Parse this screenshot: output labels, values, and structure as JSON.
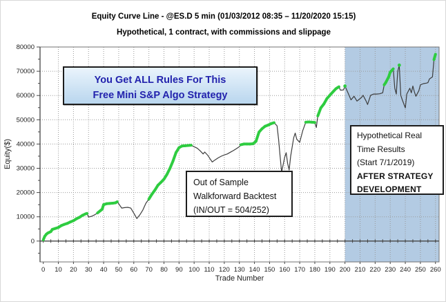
{
  "title": {
    "line1": "Equity Curve Line - @ES.D 5 min (01/03/2012 08:35 – 11/20/2020 15:15)",
    "line2": "Hypothetical, 1 contract, with commissions and slippage"
  },
  "annotations": {
    "promo_box": {
      "line1": "You Get ALL Rules For This",
      "line2": "Free Mini S&P Algo Strategy",
      "text_color": "#2222ad"
    },
    "oos_box": {
      "lines": [
        "Out of Sample",
        "Walkforward Backtest",
        "(IN/OUT = 504/252)"
      ]
    },
    "real_time_box": {
      "lines": [
        "Hypothetical Real",
        "Time Results",
        "(Start 7/1/2019)"
      ],
      "bold_lines": [
        "AFTER  STRATEGY",
        "DEVELOPMENT"
      ]
    }
  },
  "chart_data": {
    "type": "line",
    "title": "Equity Curve Line - @ES.D 5 min (01/03/2012 08:35 – 11/20/2020 15:15)",
    "subtitle": "Hypothetical, 1 contract, with commissions and slippage",
    "xlabel": "Trade Number",
    "ylabel": "Equity($)",
    "xlim": [
      -2.15,
      262.4
    ],
    "ylim": [
      -8600,
      80000
    ],
    "x_ticks": [
      0,
      10,
      20,
      30,
      40,
      50,
      60,
      70,
      80,
      90,
      100,
      110,
      120,
      130,
      140,
      150,
      160,
      170,
      180,
      190,
      200,
      210,
      220,
      230,
      240,
      250,
      260
    ],
    "y_ticks": [
      0,
      10000,
      20000,
      30000,
      40000,
      50000,
      60000,
      70000,
      80000
    ],
    "x_minor_step": 5,
    "y_minor_step": 5000,
    "grid": "dotted, vertical every 10 trades, horizontal every 10000",
    "legend_position": "none",
    "colors": {
      "line": "#3c3c3c",
      "new_equity_high": "#2ecc40",
      "shaded_region": "#b3cbe3",
      "grid": "#999999",
      "axis": "#444444",
      "frame": "#707070"
    },
    "shaded_region": {
      "x_start": 200,
      "x_end": 262.4,
      "meaning": "Hypothetical real time results period (start 7/1/2019)"
    },
    "series": [
      {
        "name": "Equity",
        "points": [
          [
            0,
            500
          ],
          [
            1,
            2000
          ],
          [
            2,
            2800
          ],
          [
            3,
            3300
          ],
          [
            4,
            3600
          ],
          [
            5,
            3900
          ],
          [
            6,
            4800
          ],
          [
            8,
            5200
          ],
          [
            10,
            5600
          ],
          [
            12,
            6400
          ],
          [
            14,
            6900
          ],
          [
            16,
            7300
          ],
          [
            18,
            7900
          ],
          [
            20,
            8400
          ],
          [
            22,
            9200
          ],
          [
            24,
            9800
          ],
          [
            26,
            10600
          ],
          [
            28,
            11200
          ],
          [
            29,
            11400
          ],
          [
            30,
            9900
          ],
          [
            32,
            10200
          ],
          [
            34,
            10800
          ],
          [
            36,
            11600
          ],
          [
            38,
            12600
          ],
          [
            39,
            13100
          ],
          [
            40,
            15000
          ],
          [
            42,
            15400
          ],
          [
            44,
            15500
          ],
          [
            46,
            15600
          ],
          [
            48,
            15800
          ],
          [
            49,
            16200
          ],
          [
            50,
            15400
          ],
          [
            52,
            13600
          ],
          [
            54,
            13800
          ],
          [
            56,
            13900
          ],
          [
            58,
            13600
          ],
          [
            60,
            11500
          ],
          [
            62,
            9300
          ],
          [
            64,
            10800
          ],
          [
            66,
            12800
          ],
          [
            68,
            15600
          ],
          [
            70,
            17300
          ],
          [
            72,
            19300
          ],
          [
            74,
            21000
          ],
          [
            76,
            23000
          ],
          [
            78,
            24200
          ],
          [
            80,
            25500
          ],
          [
            82,
            27500
          ],
          [
            84,
            30000
          ],
          [
            86,
            33000
          ],
          [
            88,
            36500
          ],
          [
            90,
            38500
          ],
          [
            92,
            39200
          ],
          [
            94,
            39300
          ],
          [
            96,
            39400
          ],
          [
            98,
            39500
          ],
          [
            100,
            38900
          ],
          [
            102,
            38300
          ],
          [
            104,
            37200
          ],
          [
            106,
            35900
          ],
          [
            107,
            36700
          ],
          [
            109,
            35400
          ],
          [
            111,
            33500
          ],
          [
            112,
            32600
          ],
          [
            114,
            33500
          ],
          [
            116,
            34300
          ],
          [
            118,
            35000
          ],
          [
            120,
            35500
          ],
          [
            122,
            35900
          ],
          [
            124,
            36600
          ],
          [
            126,
            37300
          ],
          [
            128,
            38100
          ],
          [
            130,
            38900
          ],
          [
            131,
            39700
          ],
          [
            133,
            40000
          ],
          [
            135,
            40000
          ],
          [
            137,
            40000
          ],
          [
            139,
            40100
          ],
          [
            141,
            41100
          ],
          [
            143,
            44900
          ],
          [
            145,
            46300
          ],
          [
            147,
            47300
          ],
          [
            149,
            47800
          ],
          [
            151,
            48400
          ],
          [
            153,
            48800
          ],
          [
            155,
            47500
          ],
          [
            156,
            42000
          ],
          [
            157,
            35000
          ],
          [
            158,
            28400
          ],
          [
            160,
            34500
          ],
          [
            161,
            36400
          ],
          [
            162,
            32000
          ],
          [
            163,
            29300
          ],
          [
            164,
            35000
          ],
          [
            166,
            42600
          ],
          [
            167,
            44500
          ],
          [
            168,
            42000
          ],
          [
            170,
            40700
          ],
          [
            172,
            45500
          ],
          [
            174,
            49000
          ],
          [
            176,
            49100
          ],
          [
            178,
            49000
          ],
          [
            180,
            48900
          ],
          [
            181,
            46800
          ],
          [
            182,
            51600
          ],
          [
            184,
            54900
          ],
          [
            186,
            56500
          ],
          [
            188,
            58700
          ],
          [
            190,
            60100
          ],
          [
            192,
            61500
          ],
          [
            194,
            62800
          ],
          [
            195,
            63200
          ],
          [
            196,
            63600
          ],
          [
            197,
            62200
          ],
          [
            199,
            62300
          ],
          [
            200,
            63900
          ],
          [
            202,
            61100
          ],
          [
            204,
            58200
          ],
          [
            206,
            59700
          ],
          [
            208,
            57700
          ],
          [
            209,
            58200
          ],
          [
            211,
            59200
          ],
          [
            212,
            60100
          ],
          [
            214,
            57700
          ],
          [
            215,
            56300
          ],
          [
            217,
            60100
          ],
          [
            219,
            60600
          ],
          [
            221,
            60600
          ],
          [
            223,
            60700
          ],
          [
            225,
            61100
          ],
          [
            226,
            64400
          ],
          [
            227,
            65300
          ],
          [
            229,
            67700
          ],
          [
            230,
            69600
          ],
          [
            232,
            71000
          ],
          [
            233,
            63000
          ],
          [
            234,
            60600
          ],
          [
            235,
            70000
          ],
          [
            236,
            72500
          ],
          [
            237,
            60100
          ],
          [
            238,
            58200
          ],
          [
            240,
            54900
          ],
          [
            241,
            60600
          ],
          [
            243,
            63000
          ],
          [
            244,
            61100
          ],
          [
            245,
            63900
          ],
          [
            246,
            61500
          ],
          [
            247,
            59700
          ],
          [
            249,
            62000
          ],
          [
            250,
            64400
          ],
          [
            252,
            64900
          ],
          [
            254,
            65100
          ],
          [
            255,
            65300
          ],
          [
            256,
            66800
          ],
          [
            258,
            67700
          ],
          [
            259,
            74800
          ],
          [
            260,
            77000
          ]
        ]
      }
    ],
    "marker_rule": "segments where equity makes a new running high are drawn thick green"
  }
}
